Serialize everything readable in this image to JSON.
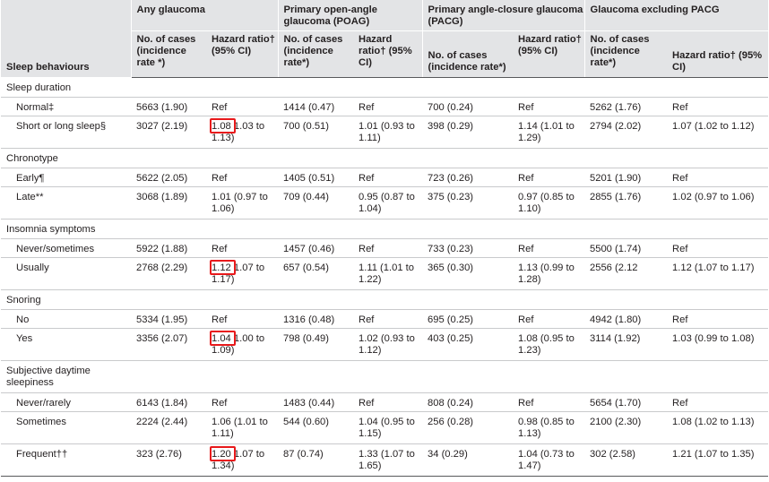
{
  "header": {
    "groups": [
      "Any glaucoma",
      "Primary open-angle glaucoma (POAG)",
      "Primary angle-closure glaucoma (PACG)",
      "Glaucoma excluding PACG"
    ],
    "row_label": "Sleep behaviours",
    "sub": [
      "No. of cases (incidence rate *)",
      "Hazard ratio† (95% CI)",
      "No. of cases (incidence rate*)",
      "Hazard ratio† (95% CI)",
      "No. of cases (incidence rate*)",
      "Hazard ratio† (95% CI)",
      "No. of cases (incidence rate*)",
      "Hazard ratio† (95% CI)"
    ]
  },
  "sections": [
    {
      "title": "Sleep duration",
      "rows": [
        {
          "label": "Normal‡",
          "cells": [
            "5663 (1.90)",
            "Ref",
            "1414 (0.47)",
            "Ref",
            "700 (0.24)",
            "Ref",
            "5262 (1.76)",
            "Ref"
          ]
        },
        {
          "label": "Short or long sleep§",
          "hr_point": "1.08",
          "hr_ci": "1.03 to 1.13)",
          "cells": [
            "3027 (2.19)",
            "1.08 (1.03 to 1.13)",
            "700 (0.51)",
            "1.01 (0.93 to 1.11)",
            "398 (0.29)",
            "1.14 (1.01 to 1.29)",
            "2794 (2.02)",
            "1.07 (1.02 to 1.12)"
          ]
        }
      ]
    },
    {
      "title": "Chronotype",
      "rows": [
        {
          "label": "Early¶",
          "cells": [
            "5622 (2.05)",
            "Ref",
            "1405 (0.51)",
            "Ref",
            "723 (0.26)",
            "Ref",
            "5201 (1.90)",
            "Ref"
          ]
        },
        {
          "label": "Late**",
          "cells": [
            "3068 (1.89)",
            "1.01 (0.97 to 1.06)",
            "709 (0.44)",
            "0.95 (0.87 to 1.04)",
            "375 (0.23)",
            "0.97 (0.85 to 1.10)",
            "2855 (1.76)",
            "1.02 (0.97 to 1.06)"
          ]
        }
      ]
    },
    {
      "title": "Insomnia symptoms",
      "rows": [
        {
          "label": "Never/sometimes",
          "cells": [
            "5922 (1.88)",
            "Ref",
            "1457 (0.46)",
            "Ref",
            "733 (0.23)",
            "Ref",
            "5500 (1.74)",
            "Ref"
          ]
        },
        {
          "label": "Usually",
          "hr_point": "1.12",
          "hr_ci": "1.07 to 1.17)",
          "cells": [
            "2768 (2.29)",
            "1.12 (1.07 to 1.17)",
            "657 (0.54)",
            "1.11 (1.01 to 1.22)",
            "365 (0.30)",
            "1.13 (0.99 to 1.28)",
            "2556 (2.12",
            "1.12 (1.07 to 1.17)"
          ]
        }
      ]
    },
    {
      "title": "Snoring",
      "rows": [
        {
          "label": "No",
          "cells": [
            "5334 (1.95)",
            "Ref",
            "1316 (0.48)",
            "Ref",
            "695 (0.25)",
            "Ref",
            "4942 (1.80)",
            "Ref"
          ]
        },
        {
          "label": "Yes",
          "hr_point": "1.04",
          "hr_ci": "1.00 to 1.09)",
          "cells": [
            "3356 (2.07)",
            "1.04 (1.00 to 1.09)",
            "798 (0.49)",
            "1.02 (0.93 to 1.12)",
            "403 (0.25)",
            "1.08 (0.95 to 1.23)",
            "3114 (1.92)",
            "1.03 (0.99 to 1.08)"
          ]
        }
      ]
    },
    {
      "title": "Subjective daytime sleepiness",
      "rows": [
        {
          "label": "Never/rarely",
          "cells": [
            "6143 (1.84)",
            "Ref",
            "1483 (0.44)",
            "Ref",
            "808 (0.24)",
            "Ref",
            "5654 (1.70)",
            "Ref"
          ]
        },
        {
          "label": "Sometimes",
          "cells": [
            "2224 (2.44)",
            "1.06 (1.01 to 1.11)",
            "544 (0.60)",
            "1.04 (0.95 to 1.15)",
            "256 (0.28)",
            "0.98 (0.85 to 1.13)",
            "2100 (2.30)",
            "1.08 (1.02 to 1.13)"
          ]
        },
        {
          "label": "Frequent††",
          "hr_point": "1.20",
          "hr_ci": "1.07 to 1.34)",
          "cells": [
            "323 (2.76)",
            "1.20 (1.07 to 1.34)",
            "87 (0.74)",
            "1.33 (1.07 to 1.65)",
            "34 (0.29)",
            "1.04 (0.73 to 1.47)",
            "302 (2.58)",
            "1.21 (1.07 to 1.35)"
          ]
        }
      ]
    }
  ],
  "colors": {
    "highlight_box": "#e8191b",
    "header_bg": "#e3e4e6",
    "rule": "#58595b"
  }
}
